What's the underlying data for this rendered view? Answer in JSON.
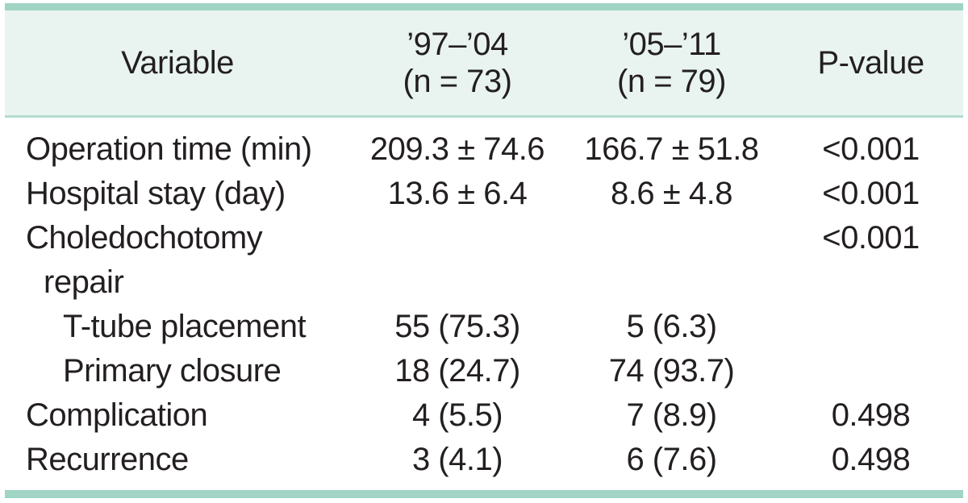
{
  "colors": {
    "accent_bar": "#a0d4c5",
    "header_bg": "#e9f4f0",
    "header_border": "#b5dcd1",
    "text": "#231f20"
  },
  "table": {
    "header": {
      "variable": "Variable",
      "group1_line1": "’97–’04",
      "group1_line2": "(n = 73)",
      "group2_line1": "’05–’11",
      "group2_line2": "(n = 79)",
      "pvalue": "P-value"
    },
    "rows": [
      {
        "variable": "Operation time (min)",
        "group1": "209.3 ± 74.6",
        "group2": "166.7 ± 51.8",
        "pvalue": "<0.001"
      },
      {
        "variable": "Hospital stay (day)",
        "group1": "13.6 ± 6.4",
        "group2": "8.6 ± 4.8",
        "pvalue": "<0.001"
      },
      {
        "variable_line1": "Choledochotomy",
        "variable_line2": "repair",
        "group1": "",
        "group2": "",
        "pvalue": "<0.001"
      },
      {
        "variable": "T-tube placement",
        "group1": "55 (75.3)",
        "group2": "5 (6.3)",
        "pvalue": ""
      },
      {
        "variable": "Primary closure",
        "group1": "18 (24.7)",
        "group2": "74 (93.7)",
        "pvalue": ""
      },
      {
        "variable": "Complication",
        "group1": "4 (5.5)",
        "group2": "7 (8.9)",
        "pvalue": "0.498"
      },
      {
        "variable": "Recurrence",
        "group1": "3 (4.1)",
        "group2": "6 (7.6)",
        "pvalue": "0.498"
      }
    ]
  },
  "chart_data": {
    "type": "table",
    "title": "",
    "columns": [
      "Variable",
      "’97–’04 (n = 73)",
      "’05–’11 (n = 79)",
      "P-value"
    ],
    "rows": [
      [
        "Operation time (min)",
        "209.3 ± 74.6",
        "166.7 ± 51.8",
        "<0.001"
      ],
      [
        "Hospital stay (day)",
        "13.6 ± 6.4",
        "8.6 ± 4.8",
        "<0.001"
      ],
      [
        "Choledochotomy repair",
        "",
        "",
        "<0.001"
      ],
      [
        "T-tube placement",
        "55 (75.3)",
        "5 (6.3)",
        ""
      ],
      [
        "Primary closure",
        "18 (24.7)",
        "74 (93.7)",
        ""
      ],
      [
        "Complication",
        "4 (5.5)",
        "7 (8.9)",
        "0.498"
      ],
      [
        "Recurrence",
        "3 (4.1)",
        "6 (7.6)",
        "0.498"
      ]
    ]
  }
}
